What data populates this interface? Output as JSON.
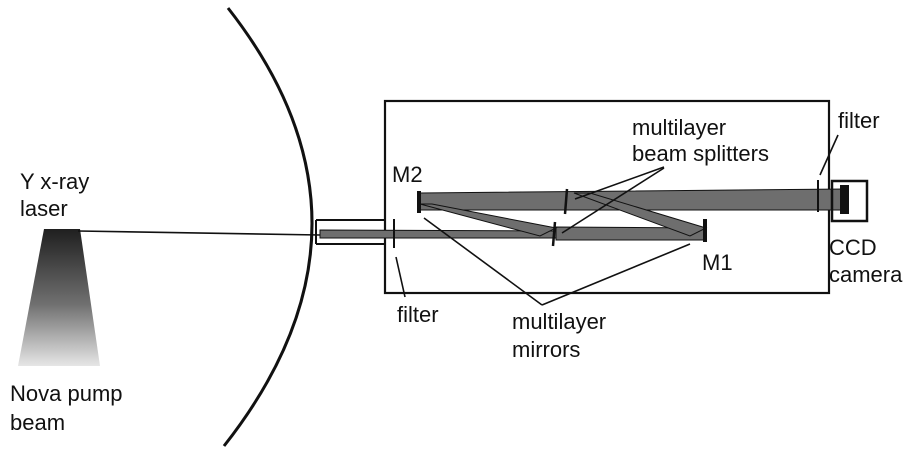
{
  "labels": {
    "laser_line1": "Y x-ray",
    "laser_line2": "laser",
    "pump_line1": "Nova pump",
    "pump_line2": "beam",
    "m2": "M2",
    "m1": "M1",
    "splitters_line1": "multilayer",
    "splitters_line2": "beam splitters",
    "filter_right": "filter",
    "filter_left": "filter",
    "mirrors_line1": "multilayer",
    "mirrors_line2": "mirrors",
    "ccd_line1": "CCD",
    "ccd_line2": "camera"
  },
  "colors": {
    "line": "#111111",
    "beam_fill": "#6e6e6e",
    "pump_dark": "#1f1f1f",
    "pump_light": "#e6e6e6"
  }
}
